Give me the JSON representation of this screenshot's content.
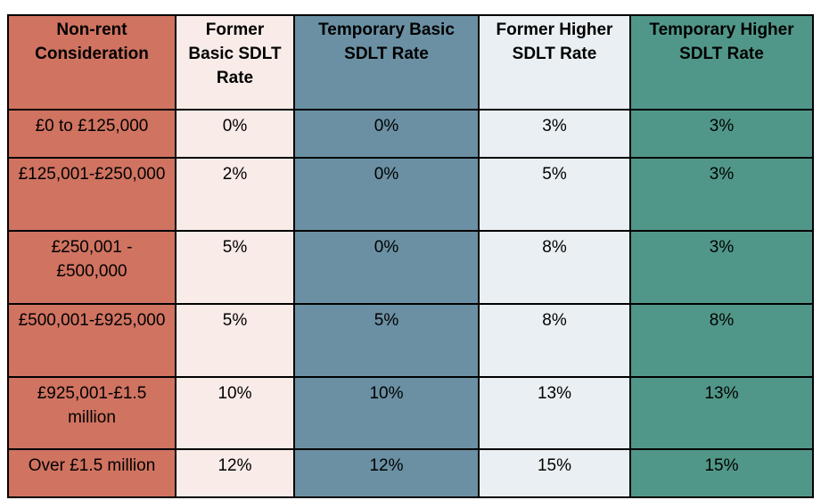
{
  "table": {
    "headers": [
      "Non-rent Consideration",
      "Former Basic SDLT Rate",
      "Temporary Basic SDLT Rate",
      "Former Higher SDLT Rate",
      "Temporary Higher SDLT Rate"
    ],
    "rows": [
      [
        "£0 to £125,000",
        "0%",
        "0%",
        "3%",
        "3%"
      ],
      [
        "£125,001-£250,000",
        "2%",
        "0%",
        "5%",
        "3%"
      ],
      [
        "£250,001 - £500,000",
        "5%",
        "0%",
        "8%",
        "3%"
      ],
      [
        "£500,001-£925,000",
        "5%",
        "5%",
        "8%",
        "8%"
      ],
      [
        "£925,001-£1.5 million",
        "10%",
        "10%",
        "13%",
        "13%"
      ],
      [
        "Over £1.5 million",
        "12%",
        "12%",
        "15%",
        "15%"
      ]
    ]
  },
  "colors": {
    "col_0": "#d07361",
    "col_1": "#f8ebe8",
    "col_2": "#6b90a3",
    "col_3": "#e9eff3",
    "col_4": "#519789",
    "border": "#000000"
  }
}
